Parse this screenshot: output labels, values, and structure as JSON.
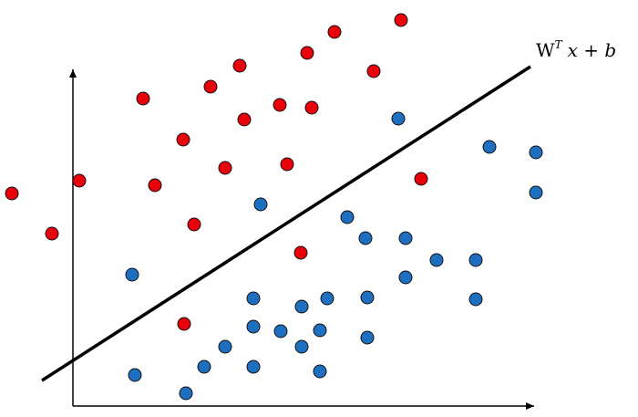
{
  "label": {
    "base": "W",
    "superscript": "T",
    "rest": "x + b"
  }
}
